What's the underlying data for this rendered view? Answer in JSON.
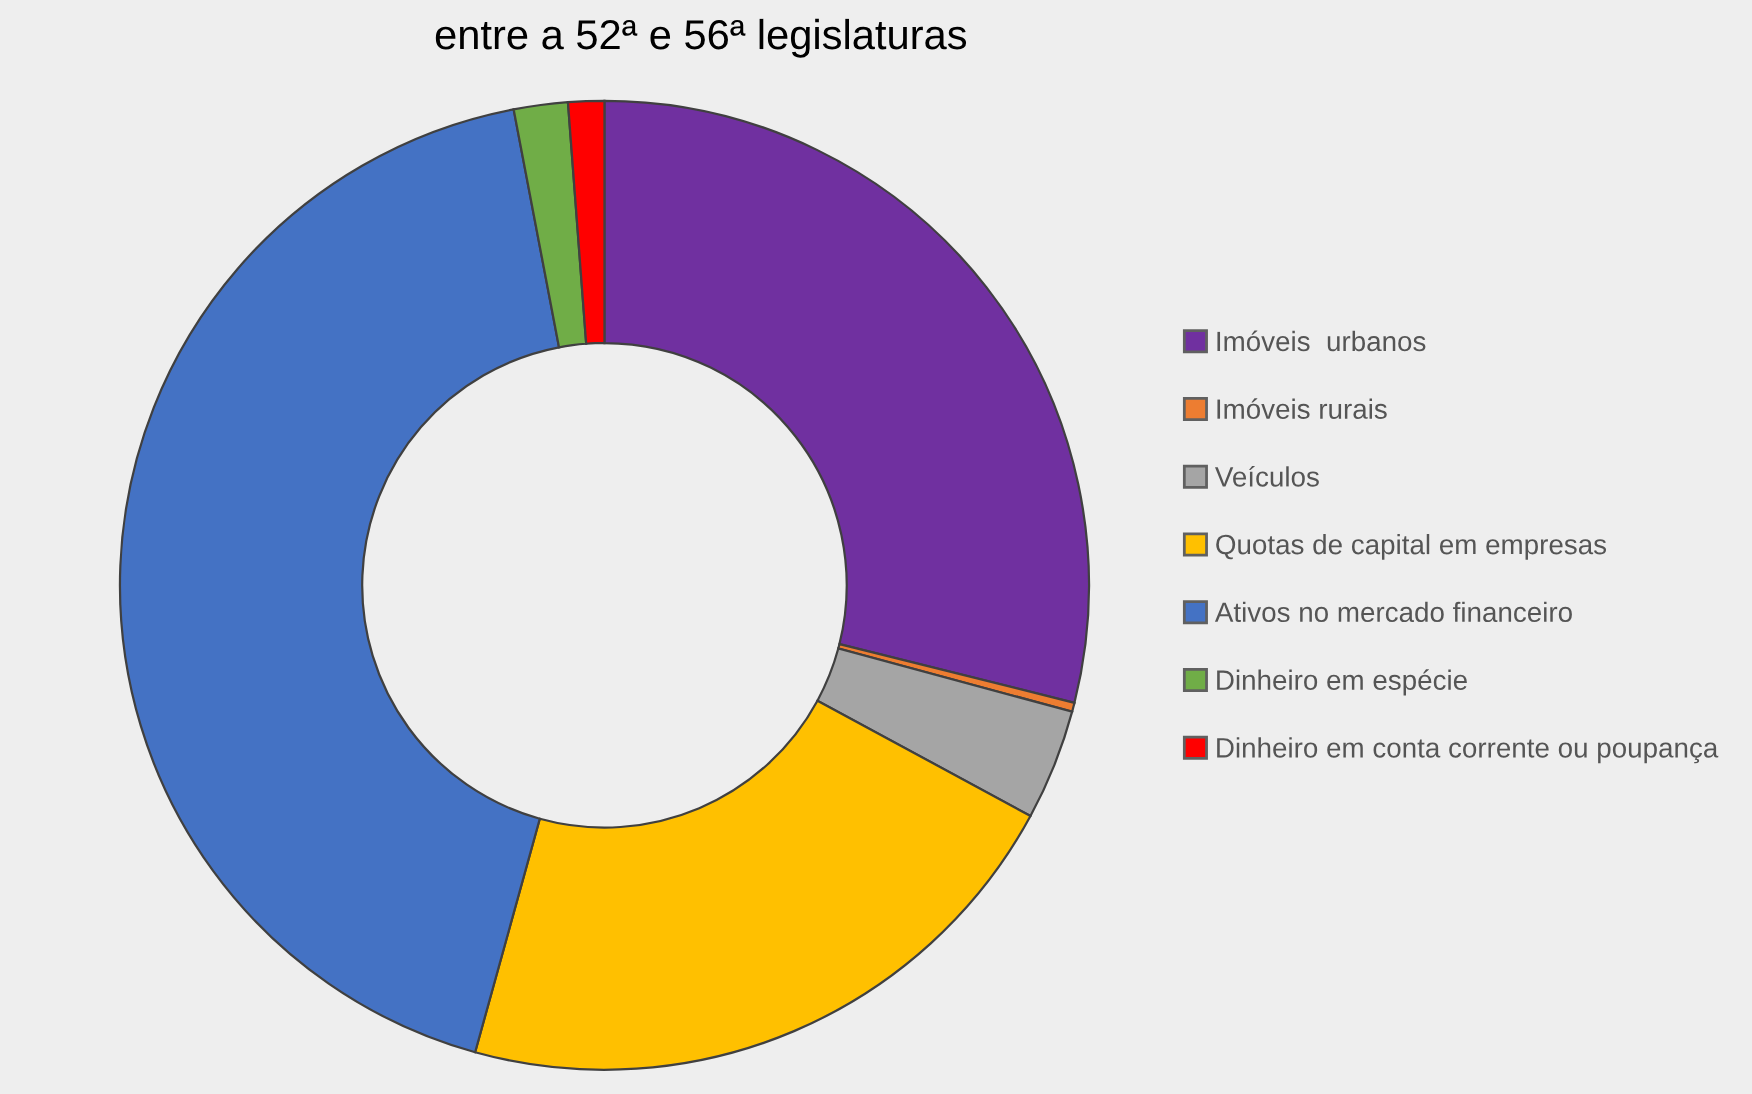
{
  "chart_data": {
    "type": "donut",
    "title": "entre a 52ª e 56ª legislaturas",
    "categories": [
      "Imóveis  urbanos",
      "Imóveis rurais",
      "Veículos",
      "Quotas de capital em empresas",
      "Ativos no mercado financeiro",
      "Dinheiro em espécie",
      "Dinheiro em conta corrente ou poupança"
    ],
    "values": [
      28.9,
      0.3,
      3.7,
      21.4,
      42.7,
      1.8,
      1.2
    ],
    "colors": [
      "#7030a0",
      "#ed7d31",
      "#a5a5a5",
      "#ffc000",
      "#4472c4",
      "#70ad47",
      "#ff0000"
    ],
    "legend": "right"
  }
}
